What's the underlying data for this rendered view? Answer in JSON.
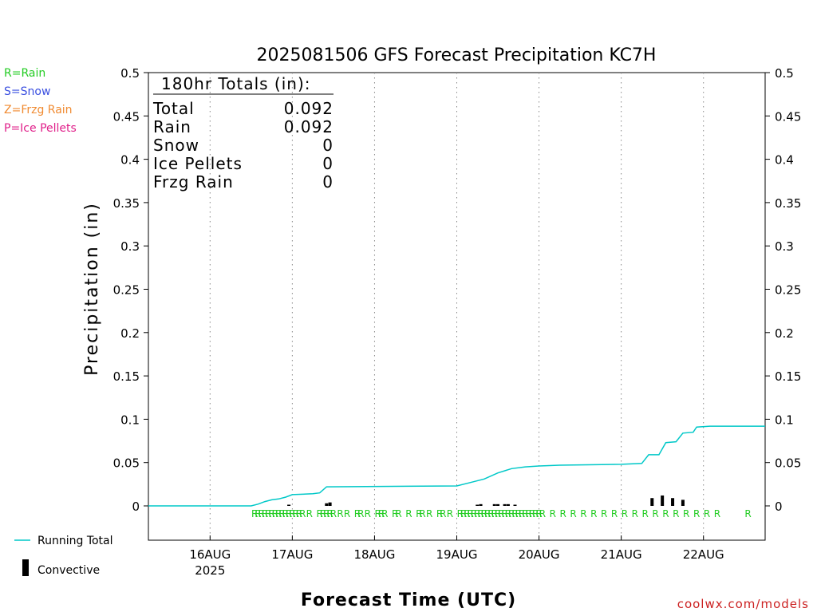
{
  "chart_data": {
    "type": "line",
    "title": "2025081506 GFS Forecast Precipitation KC7H",
    "xlabel": "Forecast Time (UTC)",
    "ylabel": "Precipitation (in)",
    "ylim": [
      0,
      0.5
    ],
    "xlim": [
      "2025-08-15T06:00",
      "2025-08-22T18:00"
    ],
    "y_ticks": [
      "0",
      "0.05",
      "0.1",
      "0.15",
      "0.2",
      "0.25",
      "0.3",
      "0.35",
      "0.4",
      "0.45",
      "0.5"
    ],
    "x_ticks": [
      {
        "label": "16AUG",
        "sublabel": "2025",
        "time": "2025-08-16T00:00"
      },
      {
        "label": "17AUG",
        "sublabel": "",
        "time": "2025-08-17T00:00"
      },
      {
        "label": "18AUG",
        "sublabel": "",
        "time": "2025-08-18T00:00"
      },
      {
        "label": "19AUG",
        "sublabel": "",
        "time": "2025-08-19T00:00"
      },
      {
        "label": "20AUG",
        "sublabel": "",
        "time": "2025-08-20T00:00"
      },
      {
        "label": "21AUG",
        "sublabel": "",
        "time": "2025-08-21T00:00"
      },
      {
        "label": "22AUG",
        "sublabel": "",
        "time": "2025-08-22T00:00"
      }
    ],
    "grid": "vertical dotted",
    "running_total": {
      "name": "Running Total",
      "color": "#00c8c8",
      "points": [
        [
          "2025-08-15T06:00",
          0
        ],
        [
          "2025-08-16T12:00",
          0
        ],
        [
          "2025-08-16T14:00",
          0.002
        ],
        [
          "2025-08-16T16:00",
          0.005
        ],
        [
          "2025-08-16T18:00",
          0.007
        ],
        [
          "2025-08-16T20:00",
          0.008
        ],
        [
          "2025-08-16T22:00",
          0.01
        ],
        [
          "2025-08-17T00:00",
          0.013
        ],
        [
          "2025-08-17T06:00",
          0.014
        ],
        [
          "2025-08-17T08:00",
          0.015
        ],
        [
          "2025-08-17T10:00",
          0.022
        ],
        [
          "2025-08-19T00:00",
          0.023
        ],
        [
          "2025-08-19T04:00",
          0.027
        ],
        [
          "2025-08-19T08:00",
          0.031
        ],
        [
          "2025-08-19T12:00",
          0.038
        ],
        [
          "2025-08-19T16:00",
          0.043
        ],
        [
          "2025-08-19T20:00",
          0.045
        ],
        [
          "2025-08-20T00:00",
          0.046
        ],
        [
          "2025-08-20T06:00",
          0.047
        ],
        [
          "2025-08-21T00:00",
          0.048
        ],
        [
          "2025-08-21T06:00",
          0.049
        ],
        [
          "2025-08-21T08:00",
          0.059
        ],
        [
          "2025-08-21T11:00",
          0.059
        ],
        [
          "2025-08-21T13:00",
          0.073
        ],
        [
          "2025-08-21T16:00",
          0.074
        ],
        [
          "2025-08-21T18:00",
          0.084
        ],
        [
          "2025-08-21T21:00",
          0.085
        ],
        [
          "2025-08-21T22:00",
          0.091
        ],
        [
          "2025-08-22T02:00",
          0.092
        ],
        [
          "2025-08-22T18:00",
          0.092
        ]
      ]
    },
    "convective": {
      "name": "Convective",
      "color": "#000000",
      "bars": [
        [
          "2025-08-16T23:00",
          0.001
        ],
        [
          "2025-08-17T10:00",
          0.003
        ],
        [
          "2025-08-17T11:00",
          0.004
        ],
        [
          "2025-08-19T06:00",
          0.001
        ],
        [
          "2025-08-19T07:00",
          0.002
        ],
        [
          "2025-08-19T11:00",
          0.002
        ],
        [
          "2025-08-19T12:00",
          0.002
        ],
        [
          "2025-08-19T14:00",
          0.002
        ],
        [
          "2025-08-19T15:00",
          0.002
        ],
        [
          "2025-08-19T17:00",
          0.001
        ],
        [
          "2025-08-21T09:00",
          0.009
        ],
        [
          "2025-08-21T12:00",
          0.012
        ],
        [
          "2025-08-21T15:00",
          0.009
        ],
        [
          "2025-08-21T18:00",
          0.007
        ]
      ]
    },
    "ptype_rain_times": [
      "2025-08-16T13:00",
      "2025-08-16T14:00",
      "2025-08-16T15:00",
      "2025-08-16T16:00",
      "2025-08-16T17:00",
      "2025-08-16T18:00",
      "2025-08-16T19:00",
      "2025-08-16T20:00",
      "2025-08-16T21:00",
      "2025-08-16T22:00",
      "2025-08-16T23:00",
      "2025-08-17T00:00",
      "2025-08-17T01:00",
      "2025-08-17T02:00",
      "2025-08-17T03:00",
      "2025-08-17T05:00",
      "2025-08-17T08:00",
      "2025-08-17T09:00",
      "2025-08-17T10:00",
      "2025-08-17T11:00",
      "2025-08-17T12:00",
      "2025-08-17T14:00",
      "2025-08-17T16:00",
      "2025-08-17T19:00",
      "2025-08-17T20:00",
      "2025-08-17T22:00",
      "2025-08-18T01:00",
      "2025-08-18T02:00",
      "2025-08-18T03:00",
      "2025-08-18T06:00",
      "2025-08-18T07:00",
      "2025-08-18T10:00",
      "2025-08-18T13:00",
      "2025-08-18T14:00",
      "2025-08-18T16:00",
      "2025-08-18T19:00",
      "2025-08-18T20:00",
      "2025-08-18T22:00",
      "2025-08-19T01:00",
      "2025-08-19T02:00",
      "2025-08-19T03:00",
      "2025-08-19T04:00",
      "2025-08-19T05:00",
      "2025-08-19T06:00",
      "2025-08-19T07:00",
      "2025-08-19T08:00",
      "2025-08-19T09:00",
      "2025-08-19T10:00",
      "2025-08-19T11:00",
      "2025-08-19T12:00",
      "2025-08-19T13:00",
      "2025-08-19T14:00",
      "2025-08-19T15:00",
      "2025-08-19T16:00",
      "2025-08-19T17:00",
      "2025-08-19T18:00",
      "2025-08-19T19:00",
      "2025-08-19T20:00",
      "2025-08-19T21:00",
      "2025-08-19T22:00",
      "2025-08-19T23:00",
      "2025-08-20T00:00",
      "2025-08-20T01:00",
      "2025-08-20T04:00",
      "2025-08-20T07:00",
      "2025-08-20T10:00",
      "2025-08-20T13:00",
      "2025-08-20T16:00",
      "2025-08-20T19:00",
      "2025-08-20T22:00",
      "2025-08-21T01:00",
      "2025-08-21T04:00",
      "2025-08-21T07:00",
      "2025-08-21T10:00",
      "2025-08-21T13:00",
      "2025-08-21T16:00",
      "2025-08-21T19:00",
      "2025-08-21T22:00",
      "2025-08-22T01:00",
      "2025-08-22T04:00",
      "2025-08-22T13:00"
    ]
  },
  "ptype_legend": [
    {
      "text": "R=Rain",
      "color": "#22cc22"
    },
    {
      "text": "S=Snow",
      "color": "#3a4fe0"
    },
    {
      "text": "Z=Frzg Rain",
      "color": "#f08a30"
    },
    {
      "text": "P=Ice Pellets",
      "color": "#e0208a"
    }
  ],
  "ptype_rain_letter": "R",
  "ptype_rain_color": "#22cc22",
  "totals": {
    "header": "180hr Totals (in):",
    "rows": [
      {
        "label": "Total",
        "value": "0.092"
      },
      {
        "label": "Rain",
        "value": "0.092"
      },
      {
        "label": "Snow",
        "value": "0"
      },
      {
        "label": "Ice Pellets",
        "value": "0"
      },
      {
        "label": "Frzg Rain",
        "value": "0"
      }
    ]
  },
  "series_legend": {
    "running_total": "Running Total",
    "convective": "Convective"
  },
  "credit": "coolwx.com/models",
  "credit_color": "#cc2222"
}
